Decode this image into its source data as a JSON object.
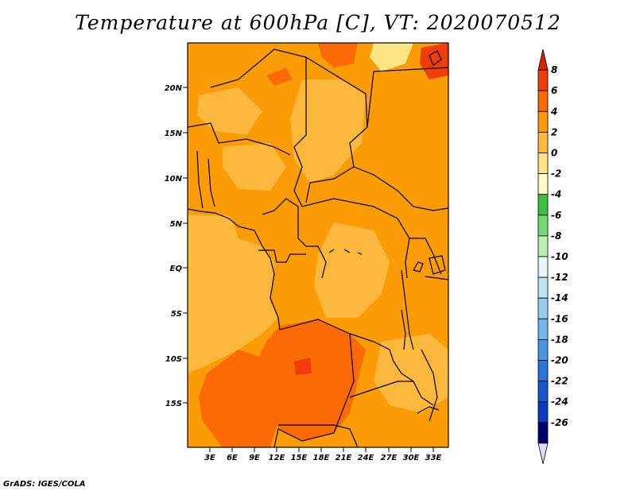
{
  "title": "Temperature at 600hPa [C], VT: 2020070512",
  "footer": "GrADS: IGES/COLA",
  "map": {
    "lat_labels": [
      "20N",
      "15N",
      "10N",
      "5N",
      "EQ",
      "5S",
      "10S",
      "15S"
    ],
    "lon_labels": [
      "3E",
      "6E",
      "9E",
      "12E",
      "15E",
      "18E",
      "21E",
      "24E",
      "27E",
      "30E",
      "33E"
    ]
  },
  "colorbar": {
    "levels": [
      "8",
      "6",
      "4",
      "2",
      "0",
      "-2",
      "-4",
      "-6",
      "-8",
      "-10",
      "-12",
      "-14",
      "-16",
      "-18",
      "-20",
      "-22",
      "-24",
      "-26"
    ],
    "colors": [
      "#d62500",
      "#ef3d0c",
      "#fb6a06",
      "#fb9c06",
      "#fcb83c",
      "#fde485",
      "#fefcc3",
      "#3fbf3f",
      "#73d973",
      "#b9efb0",
      "#e4f7f5",
      "#bde6f5",
      "#97ceef",
      "#73b6eb",
      "#4b95e2",
      "#2c73d8",
      "#1657cc",
      "#0a3ac2",
      "#000070",
      "#dcdcf7"
    ]
  }
}
